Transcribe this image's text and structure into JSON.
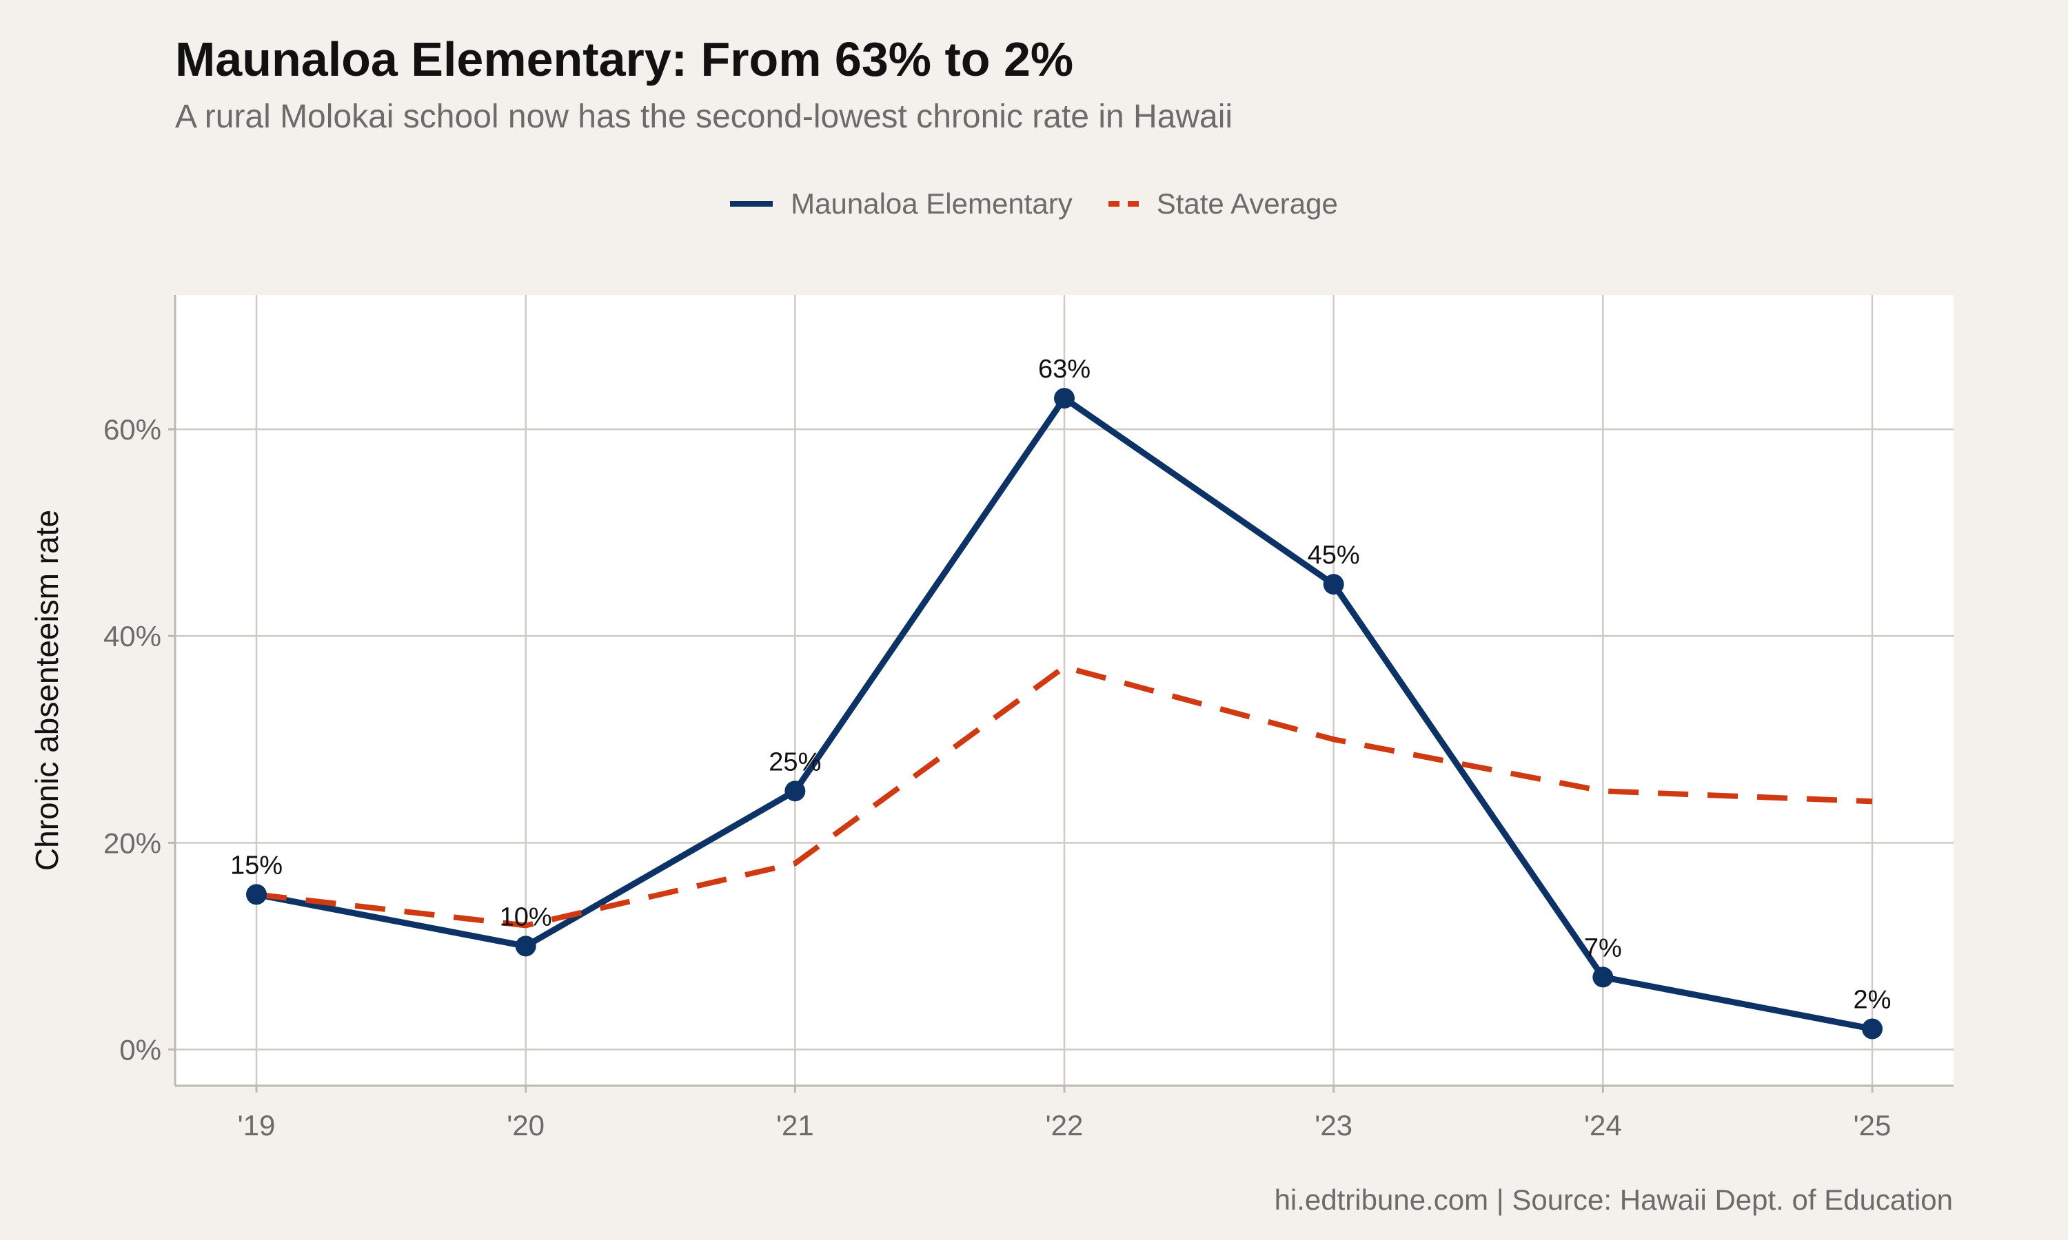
{
  "chart_data": {
    "type": "line",
    "title": "Maunaloa Elementary: From 63% to 2%",
    "subtitle": "A rural Molokai school now has the second-lowest chronic rate in Hawaii",
    "x": [
      "'19",
      "'20",
      "'21",
      "'22",
      "'23",
      "'24",
      "'25"
    ],
    "xlabel": "",
    "ylabel": "Chronic absenteeism rate",
    "ylim": [
      -3.5,
      73
    ],
    "yticks": [
      0,
      20,
      40,
      60
    ],
    "ytick_labels": [
      "0%",
      "20%",
      "40%",
      "60%"
    ],
    "grid": true,
    "legend_position": "top",
    "series": [
      {
        "name": "Maunaloa Elementary",
        "values": [
          15,
          10,
          25,
          63,
          45,
          7,
          2
        ],
        "data_labels": [
          "15%",
          "10%",
          "25%",
          "63%",
          "45%",
          "7%",
          "2%"
        ],
        "style": "solid",
        "markers": true,
        "color": "#0d3366"
      },
      {
        "name": "State Average",
        "values": [
          15,
          12,
          18,
          37,
          30,
          25,
          24
        ],
        "style": "dashed",
        "markers": false,
        "color": "#d03a12"
      }
    ],
    "caption": "hi.edtribune.com | Source: Hawaii Dept. of Education"
  }
}
